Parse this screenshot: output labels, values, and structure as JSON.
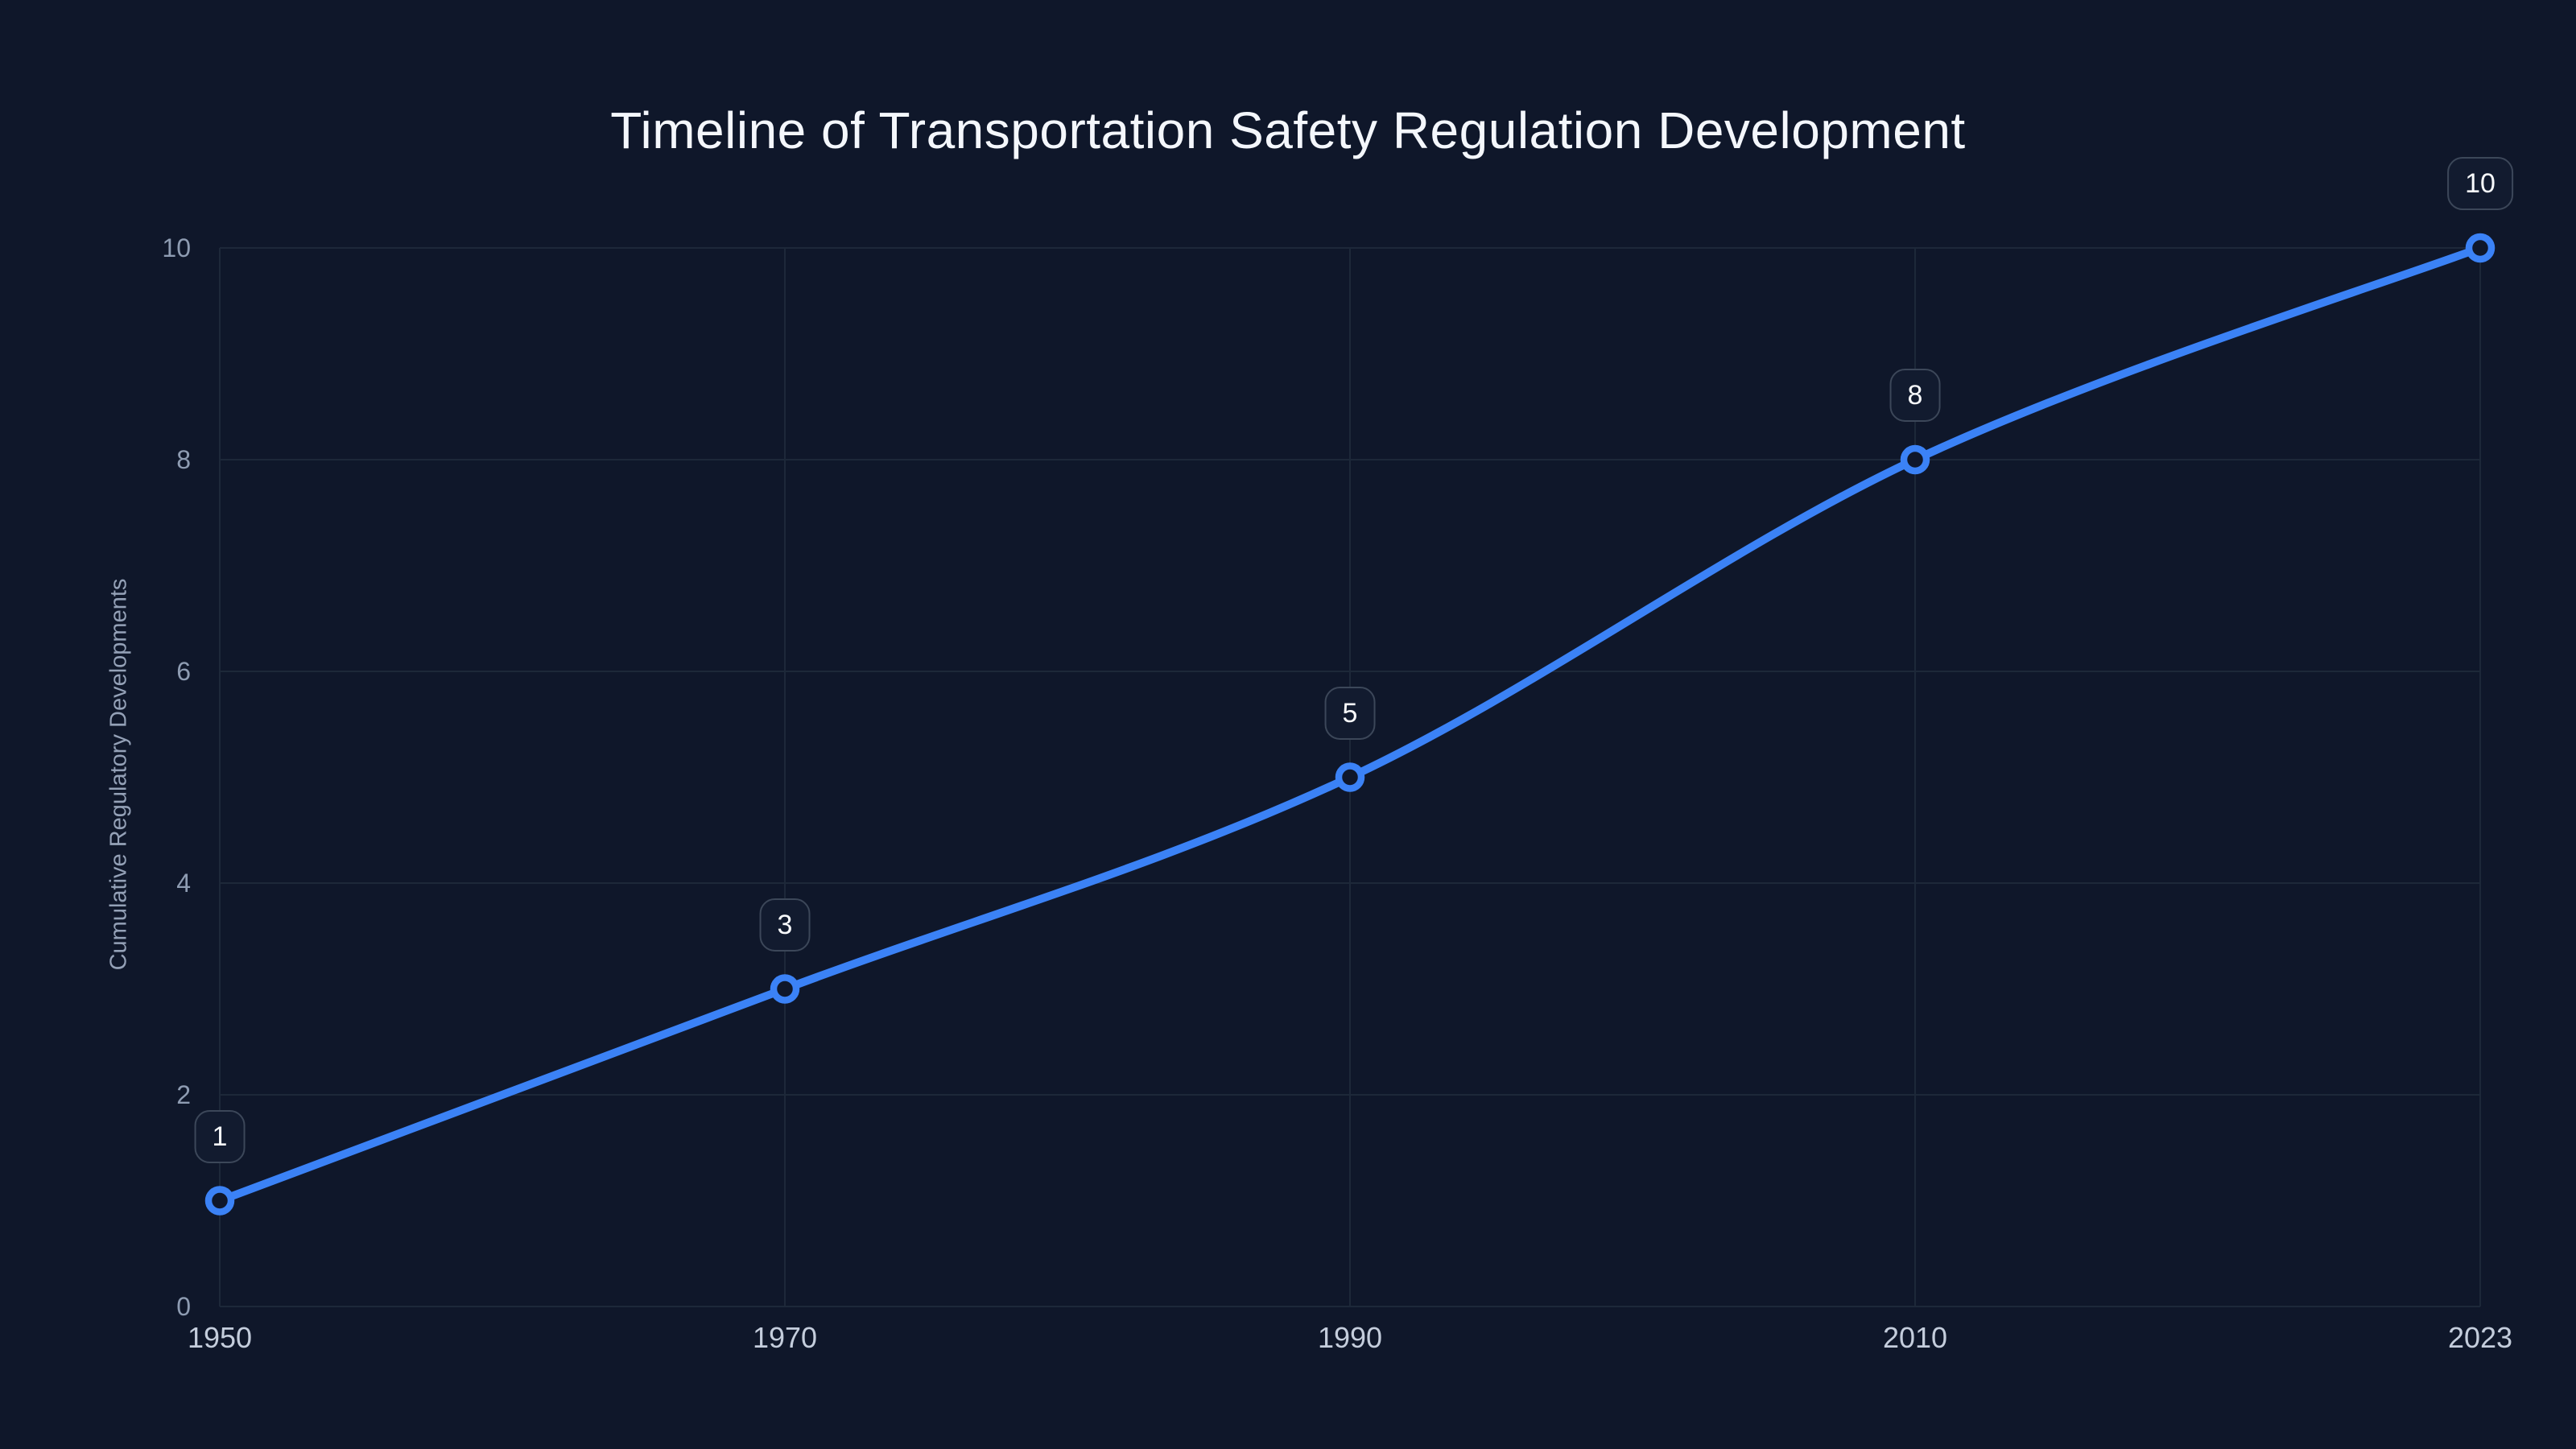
{
  "page": {
    "background_color": "#0F172A"
  },
  "chart_data": {
    "type": "line",
    "title": "Timeline of Transportation Safety Regulation Development",
    "xlabel": "",
    "ylabel": "Cumulative Regulatory Developments",
    "categories": [
      "1950",
      "1970",
      "1990",
      "2010",
      "2023"
    ],
    "values": [
      1,
      3,
      5,
      8,
      10
    ],
    "point_labels": [
      "1",
      "3",
      "5",
      "8",
      "10"
    ],
    "ylim": [
      0,
      10
    ],
    "yticks": [
      0,
      2,
      4,
      6,
      8,
      10
    ],
    "ytick_labels": [
      "0",
      "2",
      "4",
      "6",
      "8",
      "10"
    ],
    "grid": true,
    "legend": false,
    "line_shape": "spline",
    "x_axis_spacing": "categorical-equal",
    "colors": {
      "background": "#0F172A",
      "line": "#3B82F6",
      "marker_ring": "#3B82F6",
      "marker_fill": "#0F172A",
      "grid": "#1D2839",
      "title_text": "#F4F7FC",
      "y_tick_text": "#8E9CB2",
      "x_tick_text": "#C4CDDC",
      "axis_title_text": "#94A1B7",
      "label_box_fill": "#121B2F",
      "label_box_border": "#3C4759",
      "label_box_text": "#F8FAFC"
    }
  }
}
